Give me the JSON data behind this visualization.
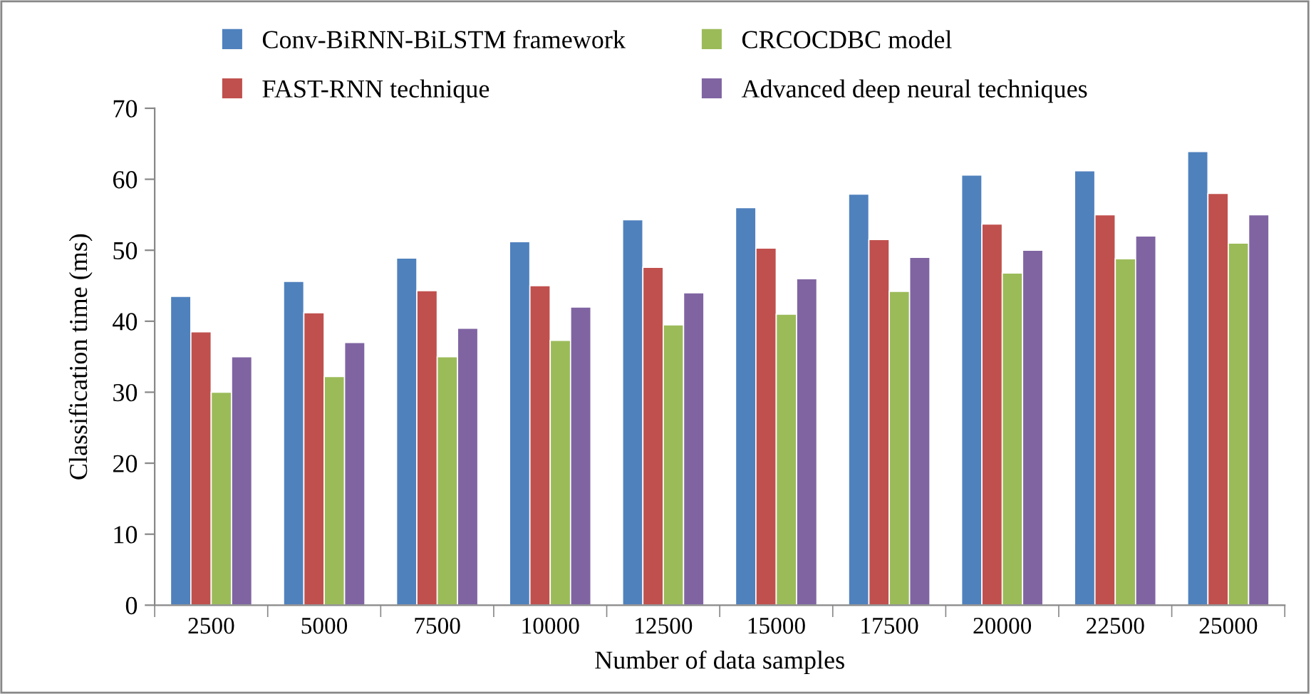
{
  "chart_data": {
    "type": "bar",
    "xlabel": "Number of data samples",
    "ylabel": "Classification time (ms)",
    "categories": [
      "2500",
      "5000",
      "7500",
      "10000",
      "12500",
      "15000",
      "17500",
      "20000",
      "22500",
      "25000"
    ],
    "series": [
      {
        "name": "Conv-BiRNN-BiLSTM framework",
        "color": "#4f81bd",
        "values": [
          43.5,
          45.6,
          48.9,
          51.2,
          54.3,
          56.0,
          57.9,
          60.6,
          61.2,
          63.9
        ]
      },
      {
        "name": "FAST-RNN technique",
        "color": "#c0504d",
        "values": [
          38.5,
          41.2,
          44.3,
          45.0,
          47.6,
          50.3,
          51.5,
          53.7,
          55.0,
          58.0
        ]
      },
      {
        "name": "CRCOCDBC model",
        "color": "#9bbb59",
        "values": [
          30.0,
          32.2,
          35.0,
          37.3,
          39.5,
          41.0,
          44.2,
          46.8,
          48.8,
          51.0
        ]
      },
      {
        "name": "Advanced deep neural techniques",
        "color": "#8064a2",
        "values": [
          35.0,
          37.0,
          39.0,
          42.0,
          44.0,
          46.0,
          49.0,
          50.0,
          52.0,
          55.0
        ]
      }
    ],
    "ylim": [
      0,
      70
    ],
    "yticks": [
      0,
      10,
      20,
      30,
      40,
      50,
      60,
      70
    ],
    "grid": false,
    "legend": "top"
  }
}
